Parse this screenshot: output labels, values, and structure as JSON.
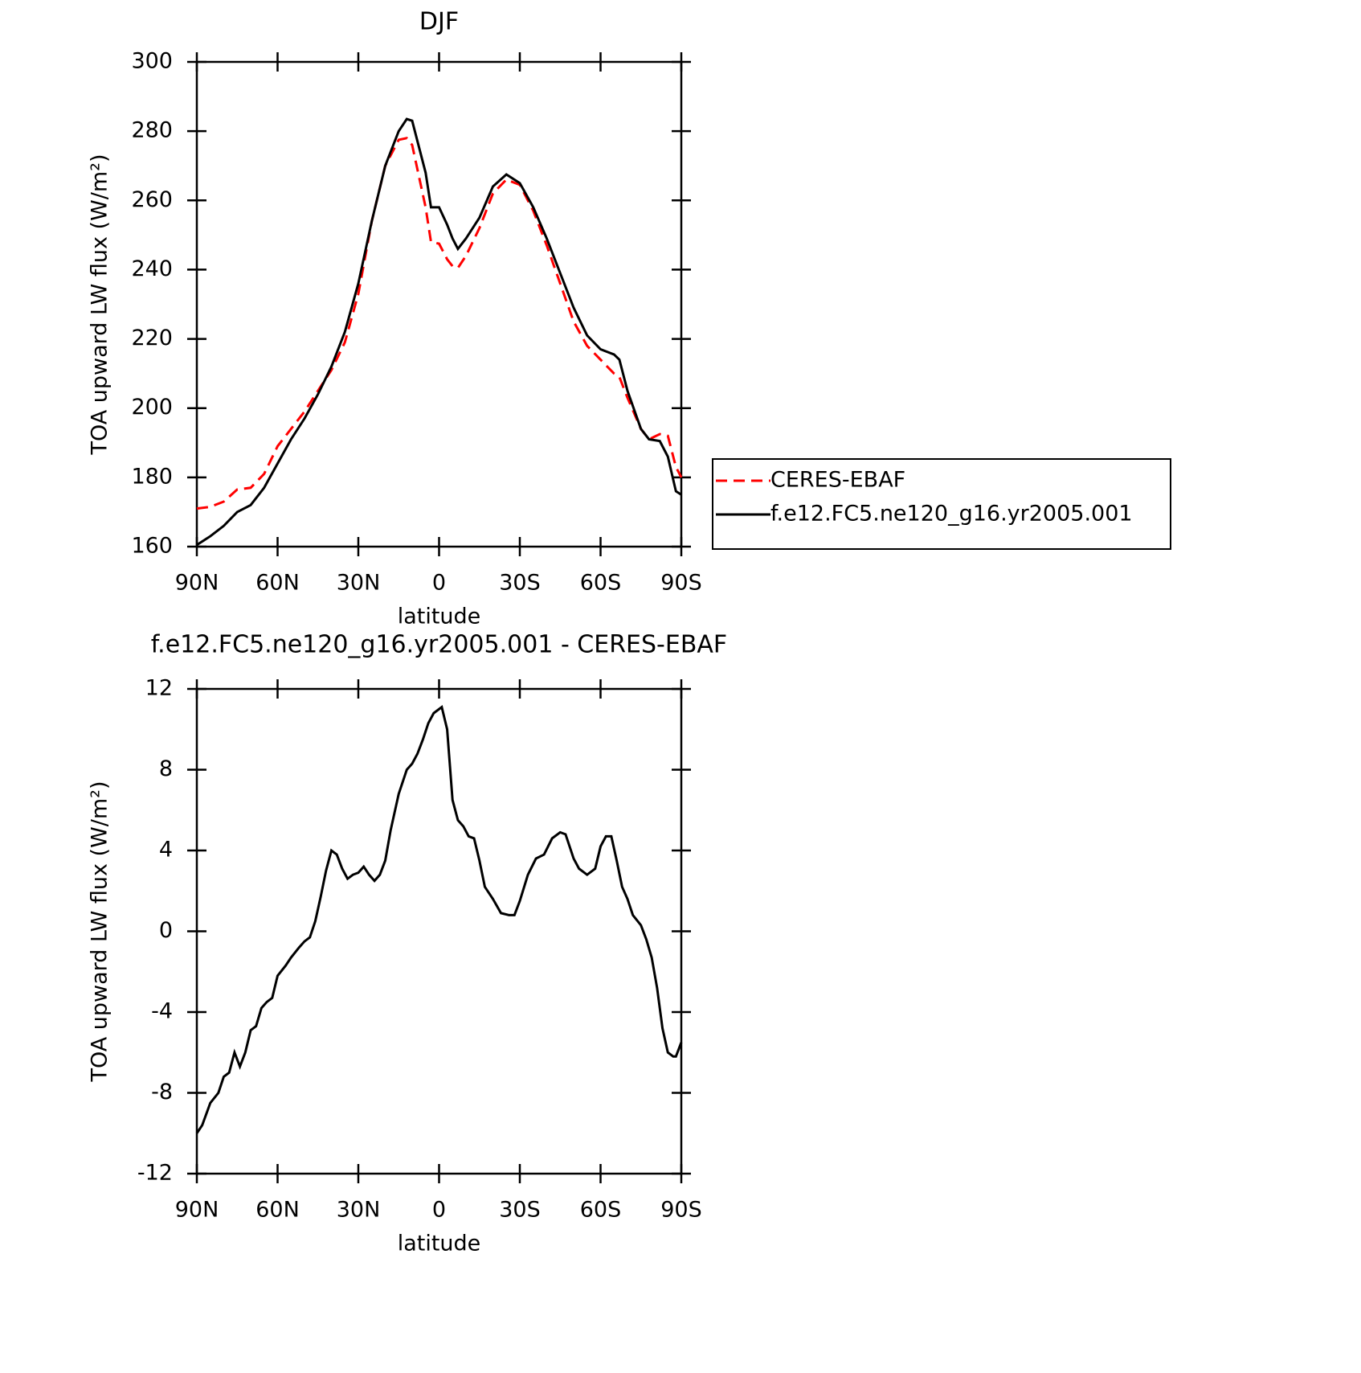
{
  "chart_data": [
    {
      "type": "line",
      "title": "DJF",
      "xlabel": "latitude",
      "ylabel": "TOA upward LW flux (W/m²)",
      "x": [
        90,
        85,
        80,
        75,
        70,
        65,
        60,
        55,
        50,
        45,
        40,
        35,
        30,
        25,
        20,
        15,
        12,
        10,
        5,
        3,
        0,
        -3,
        -5,
        -7,
        -10,
        -15,
        -20,
        -25,
        -30,
        -35,
        -40,
        -45,
        -50,
        -55,
        -60,
        -65,
        -67,
        -70,
        -75,
        -78,
        -82,
        -85,
        -88,
        -90
      ],
      "series": [
        {
          "name": "CERES-EBAF",
          "color": "#ff0000",
          "linestyle": "dashed",
          "values": [
            171,
            171.5,
            173,
            176.5,
            177,
            181,
            189,
            194,
            199,
            205,
            211,
            219,
            233,
            254,
            270,
            277.5,
            278,
            276,
            258,
            248,
            247.5,
            243,
            241,
            240.5,
            244,
            252,
            262,
            266,
            264.5,
            257,
            247,
            236,
            225,
            218,
            214,
            210,
            209,
            203,
            194,
            191,
            192.5,
            192,
            183,
            180
          ]
        },
        {
          "name": "f.e12.FC5.ne120_g16.yr2005.001",
          "color": "#000000",
          "linestyle": "solid",
          "values": [
            160.5,
            163,
            166,
            170,
            172,
            177,
            184,
            191,
            197,
            204,
            212,
            222,
            236,
            254,
            270,
            280,
            283.5,
            283,
            268,
            258,
            258,
            253,
            249,
            246,
            249,
            255,
            264,
            267.5,
            265,
            258,
            249,
            239,
            229,
            221,
            217,
            215.5,
            214,
            205,
            194,
            191,
            190.5,
            186,
            176,
            175
          ]
        }
      ],
      "xlim": [
        90,
        -90
      ],
      "xticks": [
        {
          "value": 90,
          "label": "90N"
        },
        {
          "value": 60,
          "label": "60N"
        },
        {
          "value": 30,
          "label": "30N"
        },
        0,
        {
          "value": -30,
          "label": "30S"
        },
        {
          "value": -60,
          "label": "60S"
        },
        {
          "value": -90,
          "label": "90S"
        }
      ],
      "ylim": [
        160,
        300
      ],
      "yticks": [
        160,
        180,
        200,
        220,
        240,
        260,
        280,
        300
      ],
      "legend": "right"
    },
    {
      "type": "line",
      "title": "f.e12.FC5.ne120_g16.yr2005.001 - CERES-EBAF",
      "xlabel": "latitude",
      "ylabel": "TOA upward LW flux (W/m²)",
      "x": [
        90,
        88,
        85,
        82,
        80,
        78,
        76,
        74,
        72,
        70,
        68,
        66,
        64,
        62,
        60,
        57,
        55,
        52,
        50,
        48,
        46,
        44,
        42,
        40,
        38,
        36,
        34,
        32,
        30,
        28,
        26,
        24,
        22,
        20,
        18,
        15,
        12,
        10,
        8,
        6,
        4,
        2,
        0,
        -1,
        -3,
        -5,
        -7,
        -9,
        -11,
        -13,
        -15,
        -17,
        -20,
        -23,
        -26,
        -28,
        -30,
        -33,
        -36,
        -39,
        -42,
        -45,
        -47,
        -50,
        -52,
        -55,
        -58,
        -60,
        -62,
        -64,
        -66,
        -68,
        -70,
        -72,
        -75,
        -77,
        -79,
        -81,
        -83,
        -85,
        -87,
        -88,
        -90
      ],
      "values": [
        -10,
        -9.6,
        -8.5,
        -8,
        -7.2,
        -7,
        -6,
        -6.7,
        -6,
        -4.9,
        -4.7,
        -3.8,
        -3.5,
        -3.3,
        -2.2,
        -1.7,
        -1.3,
        -0.8,
        -0.5,
        -0.3,
        0.5,
        1.7,
        3,
        4,
        3.8,
        3.1,
        2.6,
        2.8,
        2.9,
        3.2,
        2.8,
        2.5,
        2.8,
        3.5,
        5,
        6.8,
        8,
        8.3,
        8.8,
        9.5,
        10.3,
        10.8,
        11,
        11.1,
        10,
        6.5,
        5.5,
        5.2,
        4.7,
        4.6,
        3.5,
        2.2,
        1.6,
        0.9,
        0.8,
        0.8,
        1.5,
        2.8,
        3.6,
        3.8,
        4.6,
        4.9,
        4.8,
        3.6,
        3.1,
        2.8,
        3.1,
        4.2,
        4.7,
        4.7,
        3.5,
        2.2,
        1.6,
        0.8,
        0.3,
        -0.4,
        -1.3,
        -2.8,
        -4.8,
        -6,
        -6.2,
        -6.2,
        -5.5
      ],
      "color": "#000000",
      "xlim": [
        90,
        -90
      ],
      "xticks": [
        {
          "value": 90,
          "label": "90N"
        },
        {
          "value": 60,
          "label": "60N"
        },
        {
          "value": 30,
          "label": "30N"
        },
        0,
        {
          "value": -30,
          "label": "30S"
        },
        {
          "value": -60,
          "label": "60S"
        },
        {
          "value": -90,
          "label": "90S"
        }
      ],
      "ylim": [
        -12,
        12
      ],
      "yticks": [
        -12,
        -8,
        -4,
        0,
        4,
        8,
        12
      ]
    }
  ]
}
